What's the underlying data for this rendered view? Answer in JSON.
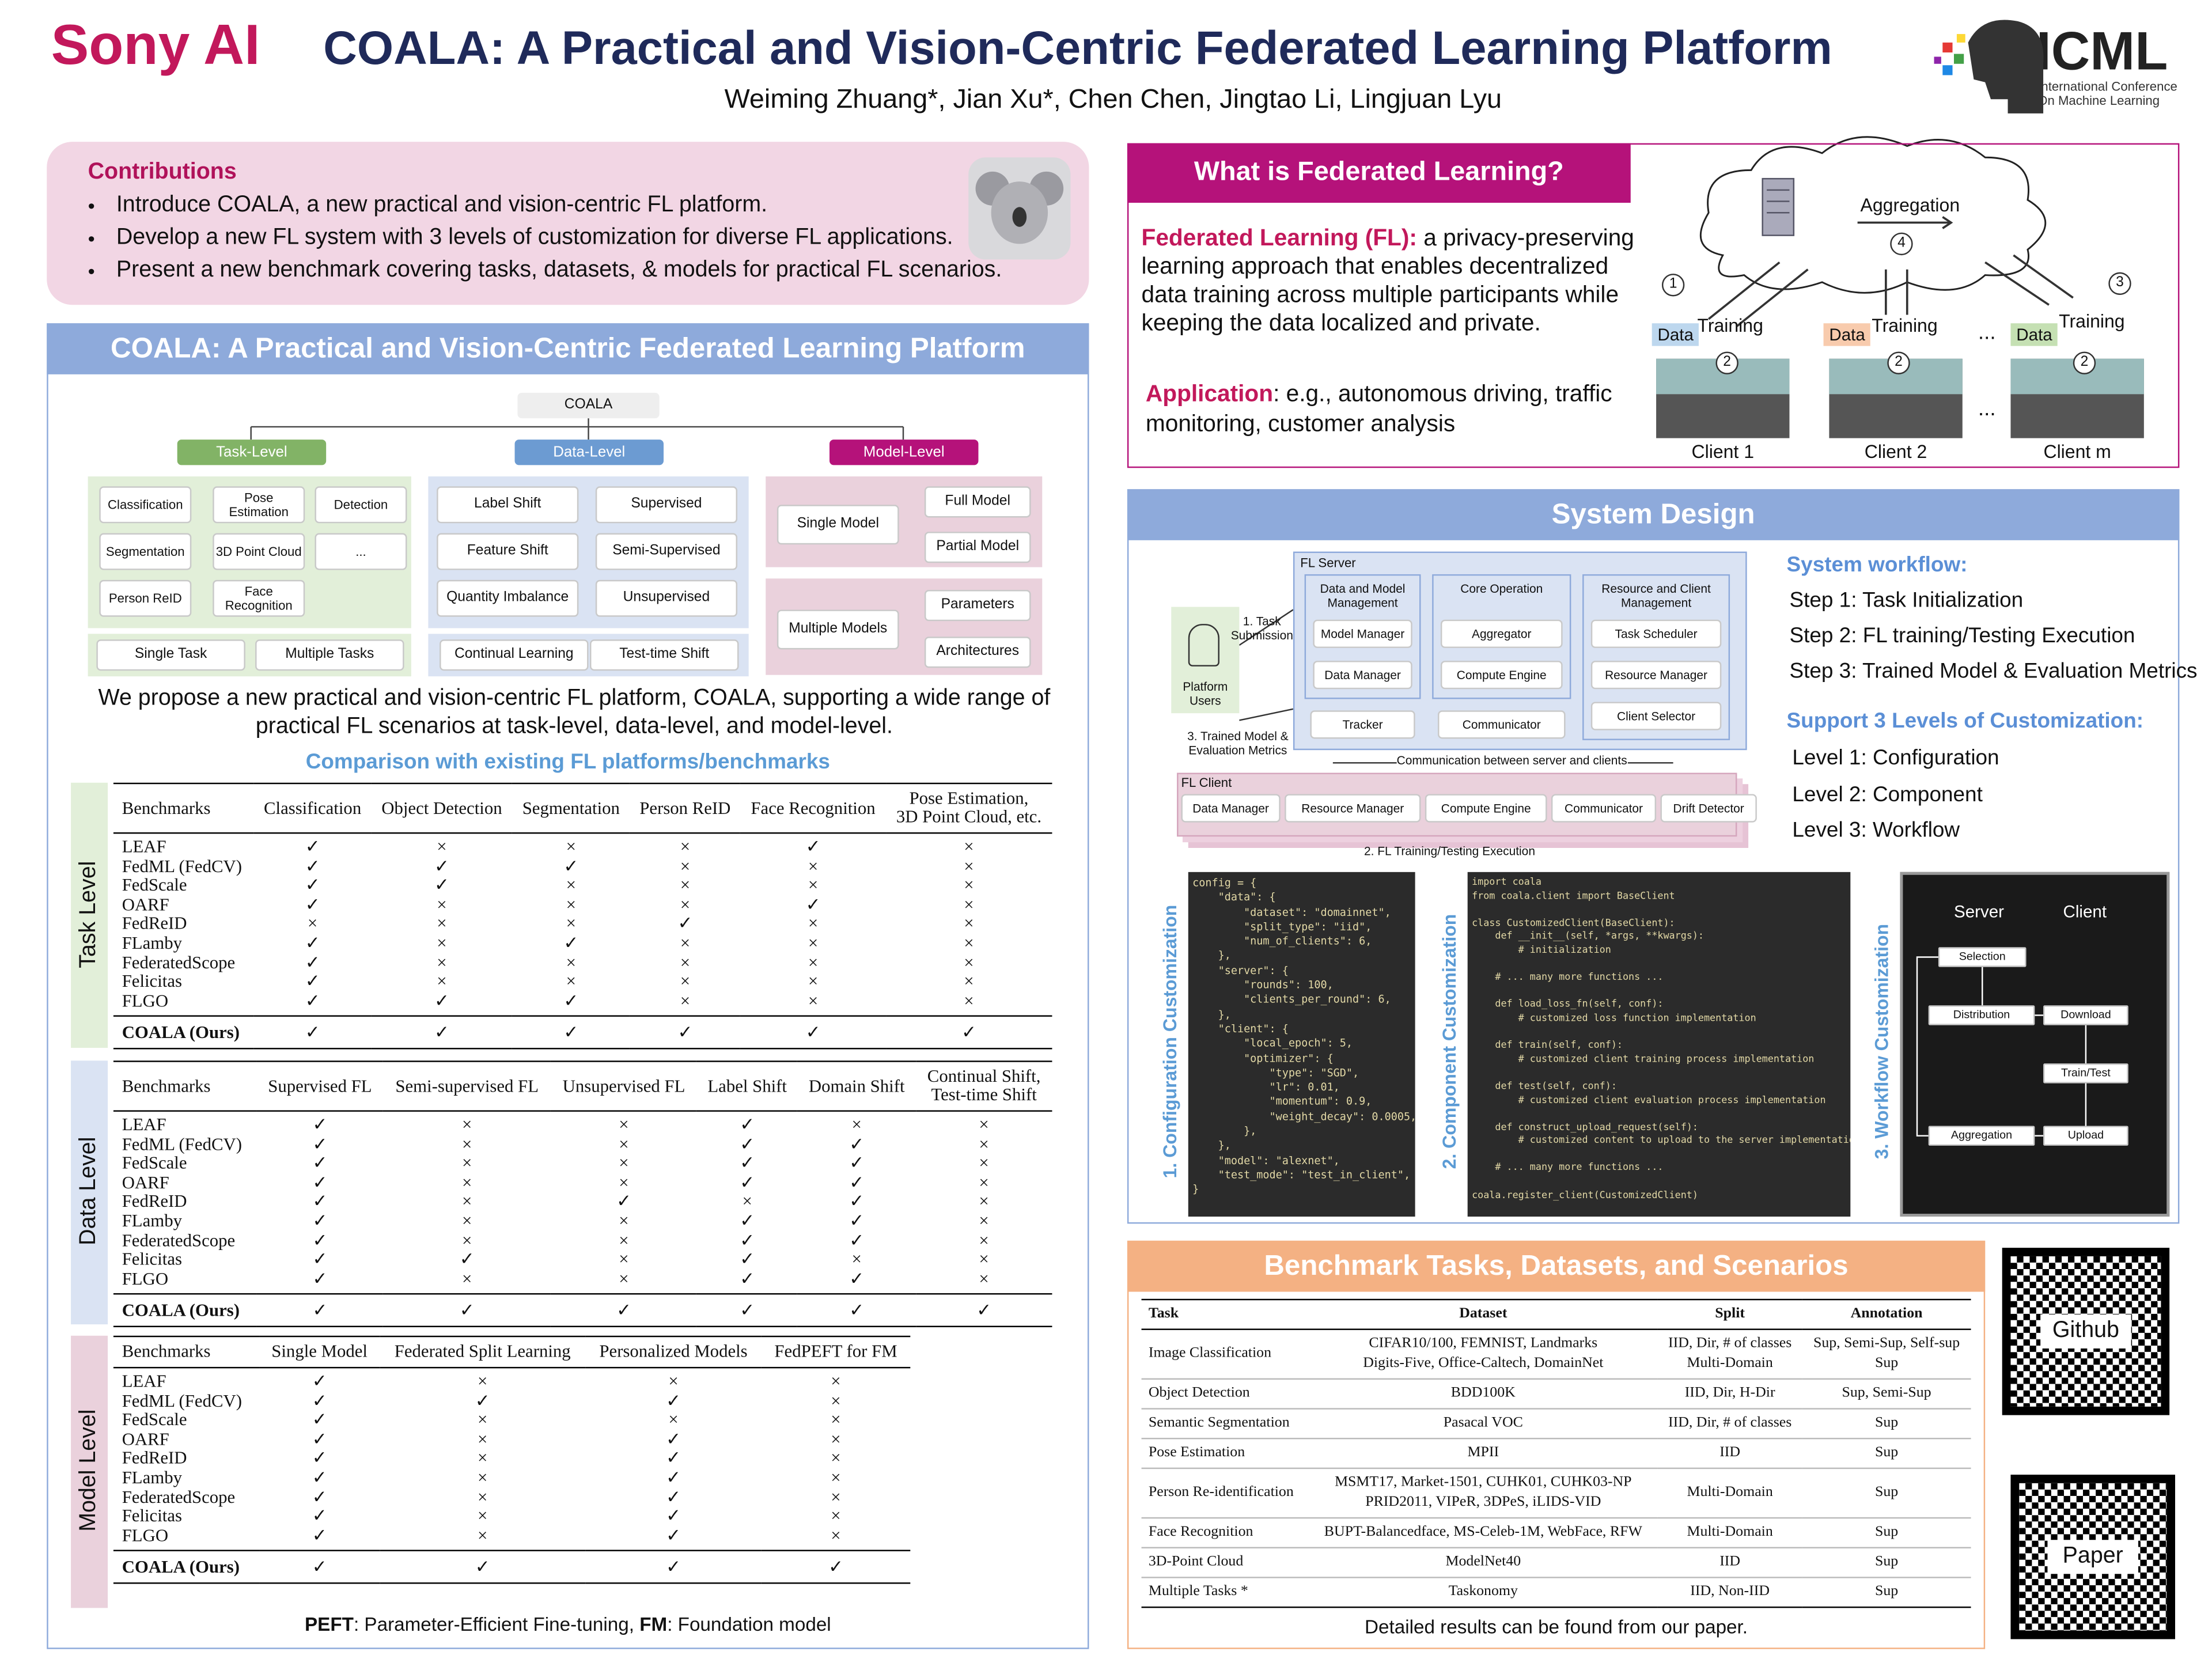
{
  "header": {
    "brand": "Sony AI",
    "title": "COALA: A Practical and Vision-Centric Federated Learning Platform",
    "authors": "Weiming Zhuang*, Jian Xu*, Chen Chen, Jingtao Li, Lingjuan Lyu",
    "conference": "ICML",
    "conference_full": "International Conference On Machine Learning"
  },
  "contributions": {
    "title": "Contributions",
    "items": [
      "Introduce COALA, a new practical and vision-centric FL platform.",
      "Develop a new FL system with 3 levels of customization for diverse FL applications.",
      "Present a new benchmark covering tasks, datasets, & models for practical FL scenarios."
    ]
  },
  "platform": {
    "title": "COALA: A Practical and Vision-Centric Federated Learning Platform",
    "root": "COALA",
    "levels": [
      {
        "label": "Task-Level",
        "items": [
          "Classification",
          "Pose Estimation",
          "Detection",
          "Segmentation",
          "3D Point Cloud",
          "...",
          "Person ReID",
          "Face Recognition"
        ],
        "scopes": [
          "Single Task",
          "Multiple Tasks"
        ]
      },
      {
        "label": "Data-Level",
        "items": [
          "Label Shift",
          "Supervised",
          "Feature Shift",
          "Semi-Supervised",
          "Quantity Imbalance",
          "Unsupervised"
        ],
        "scopes": [
          "Continual Learning",
          "Test-time Shift"
        ]
      },
      {
        "label": "Model-Level",
        "groups": [
          {
            "label": "Single Model",
            "options": [
              "Full Model",
              "Partial Model"
            ]
          },
          {
            "label": "Multiple Models",
            "options": [
              "Parameters",
              "Architectures"
            ]
          }
        ]
      }
    ],
    "summary": "We propose a new practical and vision-centric FL platform, COALA, supporting a wide range of practical FL scenarios at task-level, data-level, and model-level.",
    "comparison_title": "Comparison with existing FL platforms/benchmarks",
    "tables": [
      {
        "level": "Task Level",
        "columns": [
          "Benchmarks",
          "Classification",
          "Object Detection",
          "Segmentation",
          "Person ReID",
          "Face Recognition",
          "Pose Estimation,\n3D Point Cloud, etc."
        ],
        "rows": [
          [
            "LEAF",
            "✓",
            "×",
            "×",
            "×",
            "✓",
            "×"
          ],
          [
            "FedML (FedCV)",
            "✓",
            "✓",
            "✓",
            "×",
            "×",
            "×"
          ],
          [
            "FedScale",
            "✓",
            "✓",
            "×",
            "×",
            "×",
            "×"
          ],
          [
            "OARF",
            "✓",
            "×",
            "×",
            "×",
            "✓",
            "×"
          ],
          [
            "FedReID",
            "×",
            "×",
            "×",
            "✓",
            "×",
            "×"
          ],
          [
            "FLamby",
            "✓",
            "×",
            "✓",
            "×",
            "×",
            "×"
          ],
          [
            "FederatedScope",
            "✓",
            "×",
            "×",
            "×",
            "×",
            "×"
          ],
          [
            "Felicitas",
            "✓",
            "×",
            "×",
            "×",
            "×",
            "×"
          ],
          [
            "FLGO",
            "✓",
            "✓",
            "✓",
            "×",
            "×",
            "×"
          ]
        ],
        "ours": [
          "COALA (Ours)",
          "✓",
          "✓",
          "✓",
          "✓",
          "✓",
          "✓"
        ]
      },
      {
        "level": "Data Level",
        "columns": [
          "Benchmarks",
          "Supervised FL",
          "Semi-supervised FL",
          "Unsupervised FL",
          "Label Shift",
          "Domain Shift",
          "Continual Shift,\nTest-time Shift"
        ],
        "rows": [
          [
            "LEAF",
            "✓",
            "×",
            "×",
            "✓",
            "×",
            "×"
          ],
          [
            "FedML (FedCV)",
            "✓",
            "×",
            "×",
            "✓",
            "✓",
            "×"
          ],
          [
            "FedScale",
            "✓",
            "×",
            "×",
            "✓",
            "✓",
            "×"
          ],
          [
            "OARF",
            "✓",
            "×",
            "×",
            "✓",
            "✓",
            "×"
          ],
          [
            "FedReID",
            "✓",
            "×",
            "✓",
            "×",
            "✓",
            "×"
          ],
          [
            "FLamby",
            "✓",
            "×",
            "×",
            "✓",
            "✓",
            "×"
          ],
          [
            "FederatedScope",
            "✓",
            "×",
            "×",
            "✓",
            "✓",
            "×"
          ],
          [
            "Felicitas",
            "✓",
            "✓",
            "×",
            "✓",
            "×",
            "×"
          ],
          [
            "FLGO",
            "✓",
            "×",
            "×",
            "✓",
            "✓",
            "×"
          ]
        ],
        "ours": [
          "COALA (Ours)",
          "✓",
          "✓",
          "✓",
          "✓",
          "✓",
          "✓"
        ]
      },
      {
        "level": "Model Level",
        "columns": [
          "Benchmarks",
          "Single Model",
          "Federated Split Learning",
          "Personalized Models",
          "FedPEFT for FM"
        ],
        "rows": [
          [
            "LEAF",
            "✓",
            "×",
            "×",
            "×"
          ],
          [
            "FedML (FedCV)",
            "✓",
            "✓",
            "✓",
            "×"
          ],
          [
            "FedScale",
            "✓",
            "×",
            "×",
            "×"
          ],
          [
            "OARF",
            "✓",
            "×",
            "✓",
            "×"
          ],
          [
            "FedReID",
            "✓",
            "×",
            "✓",
            "×"
          ],
          [
            "FLamby",
            "✓",
            "×",
            "✓",
            "×"
          ],
          [
            "FederatedScope",
            "✓",
            "×",
            "✓",
            "×"
          ],
          [
            "Felicitas",
            "✓",
            "×",
            "✓",
            "×"
          ],
          [
            "FLGO",
            "✓",
            "×",
            "✓",
            "×"
          ]
        ],
        "ours": [
          "COALA (Ours)",
          "✓",
          "✓",
          "✓",
          "✓"
        ]
      }
    ],
    "footnote": [
      {
        "term": "PEFT",
        "text": ": Parameter-Efficient Fine-tuning, "
      },
      {
        "term": "FM",
        "text": ": Foundation model"
      }
    ]
  },
  "federated_learning": {
    "title": "What is Federated Learning?",
    "definition_term": "Federated Learning (FL):",
    "definition": " a privacy-preserving learning approach that enables decentralized data training across multiple participants while keeping the data localized and private.",
    "application_term": "Application",
    "application": ": e.g., autonomous driving, traffic monitoring, customer analysis",
    "diagram": {
      "aggregation": "Aggregation",
      "steps": [
        "1",
        "2",
        "3",
        "4"
      ],
      "data": "Data",
      "training": "Training",
      "ellipsis": "...",
      "clients": [
        "Client 1",
        "Client 2",
        "Client m"
      ]
    }
  },
  "system_design": {
    "title": "System Design",
    "server": "FL Server",
    "server_groups": [
      {
        "label": "Data and Model Management",
        "items": [
          "Model Manager",
          "Data Manager"
        ]
      },
      {
        "label": "Core Operation",
        "items": [
          "Aggregator",
          "Compute Engine"
        ]
      },
      {
        "label": "Resource and Client Management",
        "items": [
          "Task Scheduler",
          "Resource Manager",
          "Client Selector"
        ]
      }
    ],
    "server_extras": [
      "Tracker",
      "Communicator"
    ],
    "users": "Platform Users",
    "task_submission": "1. Task Submission",
    "results": "3. Trained Model & Evaluation Metrics",
    "communication": "Communication between server and clients",
    "client": "FL Client",
    "client_items": [
      "Data Manager",
      "Resource Manager",
      "Compute Engine",
      "Communicator",
      "Drift Detector"
    ],
    "execution": "2. FL Training/Testing Execution",
    "workflow_title": "System workflow:",
    "workflow_steps": [
      "Step 1: Task Initialization",
      "Step 2: FL training/Testing Execution",
      "Step 3: Trained Model & Evaluation Metrics"
    ],
    "customization_title": "Support 3 Levels of Customization:",
    "customization_levels": [
      "Level 1: Configuration",
      "Level 2: Component",
      "Level 3: Workflow"
    ],
    "code_panels": [
      {
        "label": "1. Configuration Customization",
        "code": "config = {\n    \"data\": {\n        \"dataset\": \"domainnet\",\n        \"split_type\": \"iid\",\n        \"num_of_clients\": 6,\n    },\n    \"server\": {\n        \"rounds\": 100,\n        \"clients_per_round\": 6,\n    },\n    \"client\": {\n        \"local_epoch\": 5,\n        \"optimizer\": {\n            \"type\": \"SGD\",\n            \"lr\": 0.01,\n            \"momentum\": 0.9,\n            \"weight_decay\": 0.0005,\n        },\n    },\n    \"model\": \"alexnet\",\n    \"test_mode\": \"test_in_client\",\n}"
      },
      {
        "label": "2. Component Customization",
        "code": "import coala\nfrom coala.client import BaseClient\n\nclass CustomizedClient(BaseClient):\n    def __init__(self, *args, **kwargs):\n        # initialization\n\n    # ... many more functions ...\n\n    def load_loss_fn(self, conf):\n        # customized loss function implementation\n\n    def train(self, conf):\n        # customized client training process implementation\n\n    def test(self, conf):\n        # customized client evaluation process implementation\n\n    def construct_upload_request(self):\n        # customized content to upload to the server implementation\n\n    # ... many more functions ...\n\ncoala.register_client(CustomizedClient)"
      }
    ],
    "workflow_panel": {
      "label": "3. Workflow Customization",
      "server": "Server",
      "client": "Client",
      "steps": [
        "Selection",
        "Distribution",
        "Download",
        "Train/Test",
        "Aggregation",
        "Upload"
      ]
    }
  },
  "benchmark": {
    "title": "Benchmark Tasks, Datasets, and Scenarios",
    "columns": [
      "Task",
      "Dataset",
      "Split",
      "Annotation"
    ],
    "rows": [
      [
        "Image Classification",
        "CIFAR10/100, FEMNIST, Landmarks\nDigits-Five, Office-Caltech, DomainNet",
        "IID, Dir, # of classes\nMulti-Domain",
        "Sup, Semi-Sup, Self-sup\nSup"
      ],
      [
        "Object Detection",
        "BDD100K",
        "IID, Dir, H-Dir",
        "Sup, Semi-Sup"
      ],
      [
        "Semantic Segmentation",
        "Pasacal VOC",
        "IID, Dir, # of classes",
        "Sup"
      ],
      [
        "Pose Estimation",
        "MPII",
        "IID",
        "Sup"
      ],
      [
        "Person Re-identification",
        "MSMT17, Market-1501, CUHK01, CUHK03-NP\nPRID2011, VIPeR, 3DPeS, iLIDS-VID",
        "Multi-Domain",
        "Sup"
      ],
      [
        "Face Recognition",
        "BUPT-Balancedface, MS-Celeb-1M, WebFace, RFW",
        "Multi-Domain",
        "Sup"
      ],
      [
        "3D-Point Cloud",
        "ModelNet40",
        "IID",
        "Sup"
      ],
      [
        "Multiple Tasks *",
        "Taskonomy",
        "IID, Non-IID",
        "Sup"
      ]
    ],
    "note": "Detailed results can be found from our paper."
  },
  "links": [
    "Github",
    "Paper"
  ]
}
